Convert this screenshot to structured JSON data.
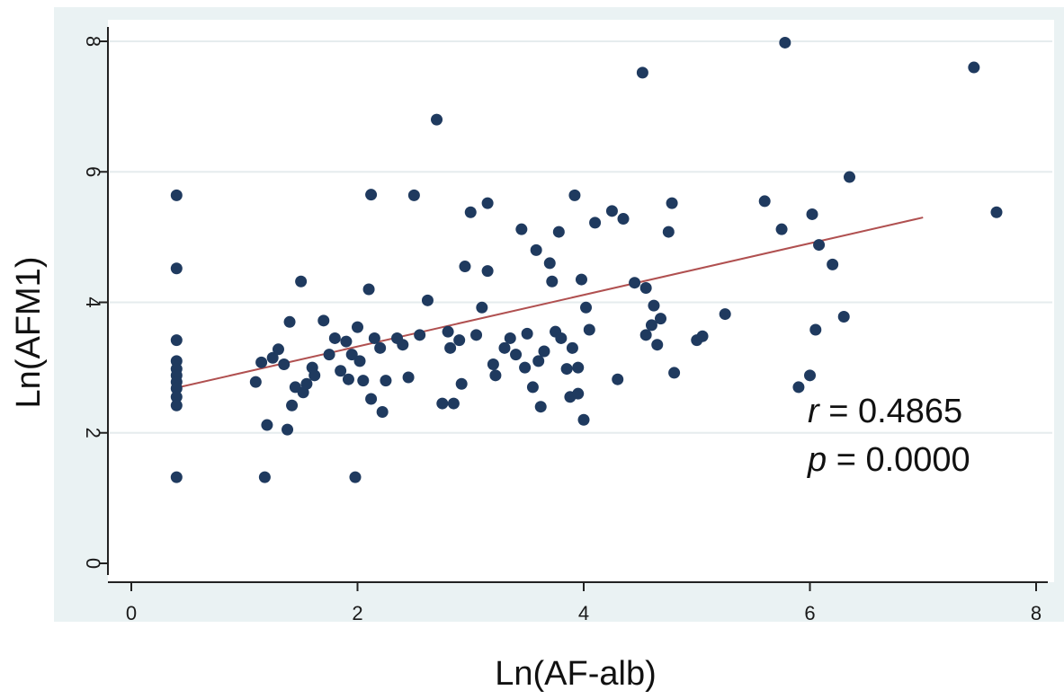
{
  "chart_data": {
    "type": "scatter",
    "xlabel": "Ln(AF-alb)",
    "ylabel": "Ln(AFM1)",
    "xlim": [
      0,
      8
    ],
    "ylim": [
      0,
      8
    ],
    "xticks": [
      "0",
      "2",
      "4",
      "6",
      "8"
    ],
    "yticks": [
      "0",
      "2",
      "4",
      "6",
      "8"
    ],
    "grid": "horizontal",
    "point_color": "#1f3a5f",
    "fit_line_color": "#b05050",
    "plot_background": "#ffffff",
    "frame_background": "#eaf2f3",
    "annotations": {
      "r_symbol": "r",
      "r_value": " = 0.4865",
      "p_symbol": "p",
      "p_value": " = 0.0000"
    },
    "fit_line": {
      "x": [
        0.4,
        7.0
      ],
      "y": [
        2.69,
        5.3
      ]
    },
    "points": [
      {
        "x": 0.4,
        "y": 5.64
      },
      {
        "x": 0.4,
        "y": 4.52
      },
      {
        "x": 0.4,
        "y": 3.42
      },
      {
        "x": 0.4,
        "y": 3.1
      },
      {
        "x": 0.4,
        "y": 2.98
      },
      {
        "x": 0.4,
        "y": 2.88
      },
      {
        "x": 0.4,
        "y": 2.78
      },
      {
        "x": 0.4,
        "y": 2.68
      },
      {
        "x": 0.4,
        "y": 2.55
      },
      {
        "x": 0.4,
        "y": 2.42
      },
      {
        "x": 0.4,
        "y": 1.32
      },
      {
        "x": 1.1,
        "y": 2.78
      },
      {
        "x": 1.15,
        "y": 3.08
      },
      {
        "x": 1.18,
        "y": 1.32
      },
      {
        "x": 1.2,
        "y": 2.12
      },
      {
        "x": 1.25,
        "y": 3.15
      },
      {
        "x": 1.3,
        "y": 3.28
      },
      {
        "x": 1.35,
        "y": 3.05
      },
      {
        "x": 1.38,
        "y": 2.05
      },
      {
        "x": 1.4,
        "y": 3.7
      },
      {
        "x": 1.42,
        "y": 2.42
      },
      {
        "x": 1.45,
        "y": 2.7
      },
      {
        "x": 1.5,
        "y": 4.32
      },
      {
        "x": 1.52,
        "y": 2.62
      },
      {
        "x": 1.55,
        "y": 2.75
      },
      {
        "x": 1.6,
        "y": 3.0
      },
      {
        "x": 1.62,
        "y": 2.88
      },
      {
        "x": 1.7,
        "y": 3.72
      },
      {
        "x": 1.75,
        "y": 3.2
      },
      {
        "x": 1.8,
        "y": 3.45
      },
      {
        "x": 1.85,
        "y": 2.95
      },
      {
        "x": 1.9,
        "y": 3.4
      },
      {
        "x": 1.92,
        "y": 2.82
      },
      {
        "x": 1.95,
        "y": 3.2
      },
      {
        "x": 1.98,
        "y": 1.32
      },
      {
        "x": 2.0,
        "y": 3.62
      },
      {
        "x": 2.02,
        "y": 3.1
      },
      {
        "x": 2.05,
        "y": 2.8
      },
      {
        "x": 2.1,
        "y": 4.2
      },
      {
        "x": 2.12,
        "y": 5.65
      },
      {
        "x": 2.12,
        "y": 2.52
      },
      {
        "x": 2.15,
        "y": 3.45
      },
      {
        "x": 2.2,
        "y": 3.3
      },
      {
        "x": 2.22,
        "y": 2.32
      },
      {
        "x": 2.25,
        "y": 2.8
      },
      {
        "x": 2.35,
        "y": 3.45
      },
      {
        "x": 2.4,
        "y": 3.35
      },
      {
        "x": 2.45,
        "y": 2.85
      },
      {
        "x": 2.5,
        "y": 5.64
      },
      {
        "x": 2.55,
        "y": 3.5
      },
      {
        "x": 2.62,
        "y": 4.03
      },
      {
        "x": 2.7,
        "y": 6.8
      },
      {
        "x": 2.75,
        "y": 2.45
      },
      {
        "x": 2.8,
        "y": 3.55
      },
      {
        "x": 2.82,
        "y": 3.3
      },
      {
        "x": 2.85,
        "y": 2.45
      },
      {
        "x": 2.9,
        "y": 3.42
      },
      {
        "x": 2.92,
        "y": 2.75
      },
      {
        "x": 2.95,
        "y": 4.55
      },
      {
        "x": 3.0,
        "y": 5.38
      },
      {
        "x": 3.05,
        "y": 3.5
      },
      {
        "x": 3.1,
        "y": 3.92
      },
      {
        "x": 3.15,
        "y": 5.52
      },
      {
        "x": 3.15,
        "y": 4.48
      },
      {
        "x": 3.2,
        "y": 3.05
      },
      {
        "x": 3.22,
        "y": 2.88
      },
      {
        "x": 3.3,
        "y": 3.3
      },
      {
        "x": 3.35,
        "y": 3.45
      },
      {
        "x": 3.4,
        "y": 3.2
      },
      {
        "x": 3.45,
        "y": 5.12
      },
      {
        "x": 3.48,
        "y": 3.0
      },
      {
        "x": 3.5,
        "y": 3.52
      },
      {
        "x": 3.55,
        "y": 2.7
      },
      {
        "x": 3.58,
        "y": 4.8
      },
      {
        "x": 3.6,
        "y": 3.1
      },
      {
        "x": 3.62,
        "y": 2.4
      },
      {
        "x": 3.65,
        "y": 3.25
      },
      {
        "x": 3.7,
        "y": 4.6
      },
      {
        "x": 3.72,
        "y": 4.32
      },
      {
        "x": 3.75,
        "y": 3.55
      },
      {
        "x": 3.78,
        "y": 5.08
      },
      {
        "x": 3.8,
        "y": 3.45
      },
      {
        "x": 3.85,
        "y": 2.98
      },
      {
        "x": 3.88,
        "y": 2.55
      },
      {
        "x": 3.9,
        "y": 3.3
      },
      {
        "x": 3.92,
        "y": 5.64
      },
      {
        "x": 3.95,
        "y": 2.6
      },
      {
        "x": 3.95,
        "y": 3.0
      },
      {
        "x": 3.98,
        "y": 4.35
      },
      {
        "x": 4.0,
        "y": 2.2
      },
      {
        "x": 4.02,
        "y": 3.92
      },
      {
        "x": 4.05,
        "y": 3.58
      },
      {
        "x": 4.1,
        "y": 5.22
      },
      {
        "x": 4.25,
        "y": 5.4
      },
      {
        "x": 4.3,
        "y": 2.82
      },
      {
        "x": 4.35,
        "y": 5.28
      },
      {
        "x": 4.45,
        "y": 4.3
      },
      {
        "x": 4.52,
        "y": 7.52
      },
      {
        "x": 4.55,
        "y": 4.22
      },
      {
        "x": 4.55,
        "y": 3.5
      },
      {
        "x": 4.6,
        "y": 3.65
      },
      {
        "x": 4.62,
        "y": 3.95
      },
      {
        "x": 4.65,
        "y": 3.35
      },
      {
        "x": 4.68,
        "y": 3.75
      },
      {
        "x": 4.75,
        "y": 5.08
      },
      {
        "x": 4.78,
        "y": 5.52
      },
      {
        "x": 4.8,
        "y": 2.92
      },
      {
        "x": 5.0,
        "y": 3.42
      },
      {
        "x": 5.05,
        "y": 3.48
      },
      {
        "x": 5.25,
        "y": 3.82
      },
      {
        "x": 5.6,
        "y": 5.55
      },
      {
        "x": 5.75,
        "y": 5.12
      },
      {
        "x": 5.78,
        "y": 7.98
      },
      {
        "x": 5.9,
        "y": 2.7
      },
      {
        "x": 6.0,
        "y": 2.88
      },
      {
        "x": 6.02,
        "y": 5.35
      },
      {
        "x": 6.05,
        "y": 3.58
      },
      {
        "x": 6.08,
        "y": 4.88
      },
      {
        "x": 6.2,
        "y": 4.58
      },
      {
        "x": 6.3,
        "y": 3.78
      },
      {
        "x": 6.35,
        "y": 5.92
      },
      {
        "x": 7.45,
        "y": 7.6
      },
      {
        "x": 7.65,
        "y": 5.38
      }
    ]
  }
}
